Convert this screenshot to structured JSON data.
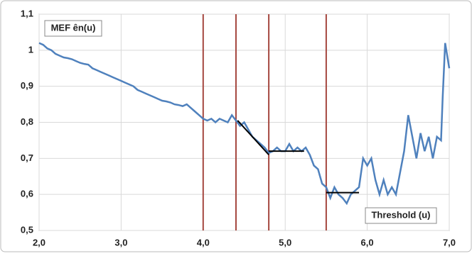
{
  "chart_data": {
    "type": "line",
    "xlabel": "Threshold (u)",
    "ylabel": "MEF ên(u)",
    "x": [
      2.0,
      2.05,
      2.1,
      2.15,
      2.2,
      2.25,
      2.3,
      2.35,
      2.4,
      2.45,
      2.5,
      2.55,
      2.6,
      2.65,
      2.7,
      2.75,
      2.8,
      2.85,
      2.9,
      2.95,
      3.0,
      3.05,
      3.1,
      3.15,
      3.2,
      3.25,
      3.3,
      3.35,
      3.4,
      3.45,
      3.5,
      3.55,
      3.6,
      3.65,
      3.7,
      3.75,
      3.8,
      3.85,
      3.9,
      3.95,
      4.0,
      4.05,
      4.1,
      4.15,
      4.2,
      4.25,
      4.3,
      4.35,
      4.4,
      4.45,
      4.5,
      4.55,
      4.6,
      4.65,
      4.7,
      4.75,
      4.8,
      4.85,
      4.9,
      4.95,
      5.0,
      5.05,
      5.1,
      5.15,
      5.2,
      5.25,
      5.3,
      5.35,
      5.4,
      5.45,
      5.5,
      5.55,
      5.6,
      5.65,
      5.7,
      5.75,
      5.8,
      5.85,
      5.9,
      5.95,
      6.0,
      6.05,
      6.1,
      6.15,
      6.2,
      6.25,
      6.3,
      6.35,
      6.4,
      6.45,
      6.5,
      6.55,
      6.6,
      6.65,
      6.7,
      6.75,
      6.8,
      6.85,
      6.9,
      6.92,
      6.95,
      7.0
    ],
    "series": [
      {
        "color": "#4f81bd",
        "values": [
          1.02,
          1.015,
          1.005,
          1.0,
          0.99,
          0.985,
          0.98,
          0.978,
          0.975,
          0.97,
          0.965,
          0.962,
          0.96,
          0.95,
          0.945,
          0.94,
          0.935,
          0.93,
          0.925,
          0.92,
          0.915,
          0.91,
          0.905,
          0.9,
          0.89,
          0.885,
          0.88,
          0.875,
          0.87,
          0.865,
          0.86,
          0.858,
          0.855,
          0.85,
          0.848,
          0.845,
          0.85,
          0.84,
          0.83,
          0.82,
          0.81,
          0.805,
          0.81,
          0.8,
          0.81,
          0.805,
          0.8,
          0.82,
          0.805,
          0.79,
          0.8,
          0.78,
          0.76,
          0.75,
          0.74,
          0.73,
          0.715,
          0.72,
          0.73,
          0.72,
          0.72,
          0.74,
          0.72,
          0.73,
          0.72,
          0.73,
          0.71,
          0.68,
          0.67,
          0.63,
          0.62,
          0.59,
          0.62,
          0.6,
          0.59,
          0.575,
          0.6,
          0.61,
          0.62,
          0.7,
          0.68,
          0.7,
          0.64,
          0.6,
          0.64,
          0.6,
          0.62,
          0.6,
          0.66,
          0.72,
          0.82,
          0.76,
          0.7,
          0.77,
          0.72,
          0.76,
          0.7,
          0.76,
          0.75,
          0.87,
          1.02,
          0.95
        ]
      }
    ],
    "reference_lines": {
      "color": "#a5473f",
      "x": [
        4.0,
        4.4,
        4.8,
        5.5
      ]
    },
    "fit_segments": {
      "color": "#000000",
      "items": [
        {
          "x": [
            4.42,
            4.8
          ],
          "y": [
            0.805,
            0.71
          ]
        },
        {
          "x": [
            4.8,
            5.23
          ],
          "y": [
            0.72,
            0.72
          ]
        },
        {
          "x": [
            5.5,
            5.9
          ],
          "y": [
            0.605,
            0.605
          ]
        }
      ]
    },
    "xlim": [
      2.0,
      7.0
    ],
    "xticks": [
      {
        "value": 2.0,
        "label": "2,0"
      },
      {
        "value": 3.0,
        "label": "3,0"
      },
      {
        "value": 4.0,
        "label": "4,0"
      },
      {
        "value": 5.0,
        "label": "5,0"
      },
      {
        "value": 6.0,
        "label": "6,0"
      },
      {
        "value": 7.0,
        "label": "7,0"
      }
    ],
    "ylim": [
      0.5,
      1.1
    ],
    "yticks": [
      {
        "value": 0.5,
        "label": "0,5"
      },
      {
        "value": 0.6,
        "label": "0,6"
      },
      {
        "value": 0.7,
        "label": "0,7"
      },
      {
        "value": 0.8,
        "label": "0,8"
      },
      {
        "value": 0.9,
        "label": "0,9"
      },
      1,
      {
        "value": 1.1,
        "label": "1,1"
      }
    ],
    "grid": true
  }
}
